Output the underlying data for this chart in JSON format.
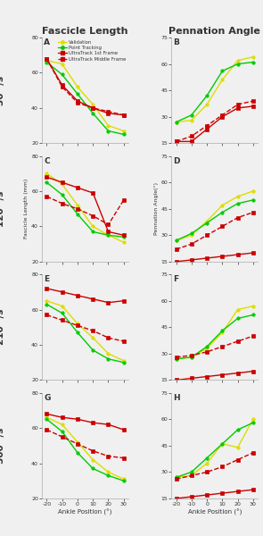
{
  "x": [
    -20,
    -10,
    0,
    10,
    20,
    30
  ],
  "title_left": "Fascicle Length",
  "title_right": "Pennation Angle",
  "row_labels": [
    "30 °/s",
    "120 °/s",
    "210 °/s",
    "500 °/s"
  ],
  "panel_labels": [
    "A",
    "B",
    "C",
    "D",
    "E",
    "F",
    "G",
    "H"
  ],
  "ylabel_left": "Fascicle Length (mm)",
  "ylabel_right": "Pennation Angle(°)",
  "xlabel": "Ankle Position (°)",
  "legend_labels": [
    "Validation",
    "Point Tracking",
    "UltraTrack 1st Frame",
    "UltraTrack Middle Frame"
  ],
  "colors": [
    "#dddd00",
    "#00cc00",
    "#cc0000",
    "#cc0000"
  ],
  "line_styles": [
    "-",
    "-",
    "-",
    "--"
  ],
  "markers": [
    "o",
    "o",
    "s",
    "s"
  ],
  "fascicle": {
    "row0": {
      "validation": [
        67,
        65,
        52,
        42,
        30,
        27
      ],
      "point_track": [
        66,
        59,
        48,
        37,
        27,
        25
      ],
      "ultra_1st": [
        68,
        53,
        44,
        40,
        37,
        36
      ],
      "ultra_mid": [
        68,
        52,
        43,
        40,
        38,
        36
      ]
    },
    "row1": {
      "validation": [
        70,
        64,
        52,
        40,
        35,
        31
      ],
      "point_track": [
        65,
        58,
        47,
        37,
        35,
        34
      ],
      "ultra_1st": [
        68,
        65,
        62,
        59,
        37,
        35
      ],
      "ultra_mid": [
        57,
        53,
        50,
        46,
        41,
        55
      ]
    },
    "row2": {
      "validation": [
        65,
        62,
        52,
        44,
        35,
        31
      ],
      "point_track": [
        63,
        58,
        47,
        37,
        32,
        30
      ],
      "ultra_1st": [
        72,
        70,
        68,
        66,
        64,
        65
      ],
      "ultra_mid": [
        57,
        54,
        51,
        48,
        44,
        42
      ]
    },
    "row3": {
      "validation": [
        66,
        62,
        52,
        42,
        35,
        31
      ],
      "point_track": [
        65,
        58,
        46,
        37,
        33,
        30
      ],
      "ultra_1st": [
        68,
        66,
        65,
        63,
        62,
        59
      ],
      "ultra_mid": [
        59,
        55,
        51,
        47,
        44,
        43
      ]
    }
  },
  "pennation": {
    "row0": {
      "validation": [
        27,
        28,
        37,
        51,
        62,
        64
      ],
      "point_track": [
        27,
        31,
        42,
        56,
        60,
        61
      ],
      "ultra_1st": [
        16,
        16,
        23,
        30,
        35,
        36
      ],
      "ultra_mid": [
        16,
        19,
        25,
        31,
        37,
        39
      ]
    },
    "row1": {
      "validation": [
        27,
        30,
        38,
        47,
        52,
        55
      ],
      "point_track": [
        27,
        31,
        37,
        43,
        48,
        50
      ],
      "ultra_1st": [
        15,
        16,
        17,
        18,
        19,
        20
      ],
      "ultra_mid": [
        22,
        25,
        30,
        35,
        40,
        43
      ]
    },
    "row2": {
      "validation": [
        27,
        28,
        33,
        42,
        55,
        57
      ],
      "point_track": [
        27,
        28,
        34,
        43,
        50,
        52
      ],
      "ultra_1st": [
        15,
        16,
        17,
        18,
        19,
        20
      ],
      "ultra_mid": [
        28,
        29,
        31,
        34,
        37,
        40
      ]
    },
    "row3": {
      "validation": [
        27,
        28,
        35,
        46,
        44,
        60
      ],
      "point_track": [
        27,
        30,
        38,
        46,
        54,
        58
      ],
      "ultra_1st": [
        15,
        16,
        17,
        18,
        19,
        20
      ],
      "ultra_mid": [
        26,
        28,
        30,
        33,
        37,
        41
      ]
    }
  },
  "ylim_fascicle": [
    20,
    80
  ],
  "ylim_pennation": [
    15,
    75
  ],
  "yticks_fascicle": [
    20,
    40,
    60,
    80
  ],
  "yticks_pennation": [
    15,
    30,
    45,
    60,
    75
  ],
  "bg_color": "#f0f0f0",
  "ax_bg_color": "#f0f0f0",
  "text_color": "#333333",
  "spine_color": "#aaaaaa",
  "marker_size": 2.5,
  "line_width": 1.0
}
